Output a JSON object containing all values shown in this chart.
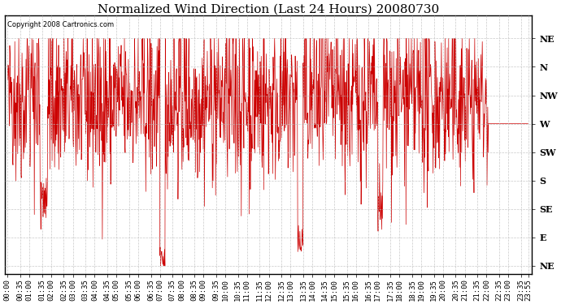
{
  "title": "Normalized Wind Direction (Last 24 Hours) 20080730",
  "copyright": "Copyright 2008 Cartronics.com",
  "background_color": "#ffffff",
  "line_color": "#cc0000",
  "ytick_labels": [
    "NE",
    "N",
    "NW",
    "W",
    "SW",
    "S",
    "SE",
    "E",
    "NE"
  ],
  "ytick_values": [
    8,
    7,
    6,
    5,
    4,
    3,
    2,
    1,
    0
  ],
  "ylim": [
    -0.3,
    8.8
  ],
  "grid_color": "#bbbbbb",
  "title_fontsize": 11,
  "label_fontsize": 8,
  "tick_fontsize": 6.5,
  "fig_width": 6.9,
  "fig_height": 3.75,
  "dpi": 100
}
